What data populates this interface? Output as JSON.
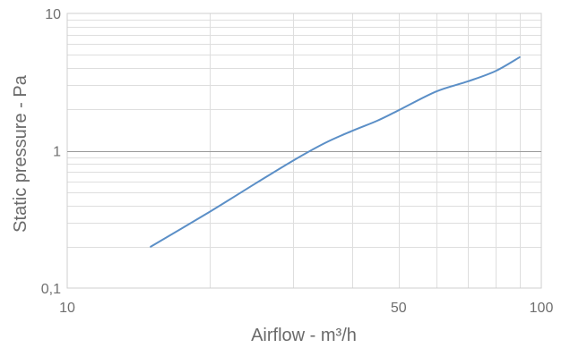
{
  "chart_data": {
    "type": "line",
    "xlabel": "Airflow  - m³/h",
    "ylabel": "Static pressure  - Pa",
    "x_scale": "log",
    "y_scale": "log",
    "xlim": [
      10,
      100
    ],
    "ylim": [
      0.1,
      10
    ],
    "x_ticks": [
      {
        "value": 10,
        "label": "10"
      },
      {
        "value": 50,
        "label": "50"
      },
      {
        "value": 100,
        "label": "100"
      }
    ],
    "y_ticks": [
      {
        "value": 0.1,
        "label": "0,1"
      },
      {
        "value": 1,
        "label": "1"
      },
      {
        "value": 10,
        "label": "10"
      }
    ],
    "grid": true,
    "series": [
      {
        "color": "#5b8fc7",
        "x": [
          15,
          20,
          25,
          30,
          35,
          40,
          45,
          50,
          60,
          70,
          80,
          90
        ],
        "y": [
          0.2,
          0.36,
          0.58,
          0.85,
          1.14,
          1.4,
          1.65,
          1.97,
          2.7,
          3.2,
          3.8,
          4.8
        ]
      }
    ]
  }
}
